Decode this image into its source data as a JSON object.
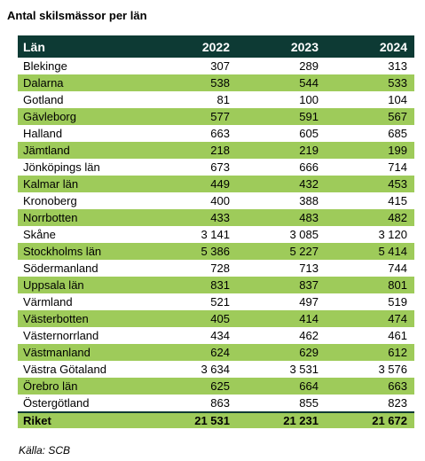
{
  "title": "Antal skilsmässor per län",
  "columns": [
    "Län",
    "2022",
    "2023",
    "2024"
  ],
  "rows": [
    {
      "lan": "Blekinge",
      "y2022": "307",
      "y2023": "289",
      "y2024": "313"
    },
    {
      "lan": "Dalarna",
      "y2022": "538",
      "y2023": "544",
      "y2024": "533"
    },
    {
      "lan": "Gotland",
      "y2022": "81",
      "y2023": "100",
      "y2024": "104"
    },
    {
      "lan": "Gävleborg",
      "y2022": "577",
      "y2023": "591",
      "y2024": "567"
    },
    {
      "lan": "Halland",
      "y2022": "663",
      "y2023": "605",
      "y2024": "685"
    },
    {
      "lan": "Jämtland",
      "y2022": "218",
      "y2023": "219",
      "y2024": "199"
    },
    {
      "lan": "Jönköpings län",
      "y2022": "673",
      "y2023": "666",
      "y2024": "714"
    },
    {
      "lan": "Kalmar län",
      "y2022": "449",
      "y2023": "432",
      "y2024": "453"
    },
    {
      "lan": "Kronoberg",
      "y2022": "400",
      "y2023": "388",
      "y2024": "415"
    },
    {
      "lan": "Norrbotten",
      "y2022": "433",
      "y2023": "483",
      "y2024": "482"
    },
    {
      "lan": "Skåne",
      "y2022": "3 141",
      "y2023": "3 085",
      "y2024": "3 120"
    },
    {
      "lan": "Stockholms län",
      "y2022": "5 386",
      "y2023": "5 227",
      "y2024": "5 414"
    },
    {
      "lan": "Södermanland",
      "y2022": "728",
      "y2023": "713",
      "y2024": "744"
    },
    {
      "lan": "Uppsala län",
      "y2022": "831",
      "y2023": "837",
      "y2024": "801"
    },
    {
      "lan": "Värmland",
      "y2022": "521",
      "y2023": "497",
      "y2024": "519"
    },
    {
      "lan": "Västerbotten",
      "y2022": "405",
      "y2023": "414",
      "y2024": "474"
    },
    {
      "lan": "Västernorrland",
      "y2022": "434",
      "y2023": "462",
      "y2024": "461"
    },
    {
      "lan": "Västmanland",
      "y2022": "624",
      "y2023": "629",
      "y2024": "612"
    },
    {
      "lan": "Västra Götaland",
      "y2022": "3 634",
      "y2023": "3 531",
      "y2024": "3 576"
    },
    {
      "lan": "Örebro län",
      "y2022": "625",
      "y2023": "664",
      "y2024": "663"
    },
    {
      "lan": "Östergötland",
      "y2022": "863",
      "y2023": "855",
      "y2024": "823"
    }
  ],
  "total": {
    "lan": "Riket",
    "y2022": "21 531",
    "y2023": "21 231",
    "y2024": "21 672"
  },
  "source": "Källa: SCB",
  "colors": {
    "header_bg": "#0d3a34",
    "header_text": "#ffffff",
    "stripe_bg": "#9ecb5a",
    "row_bg": "#ffffff"
  }
}
